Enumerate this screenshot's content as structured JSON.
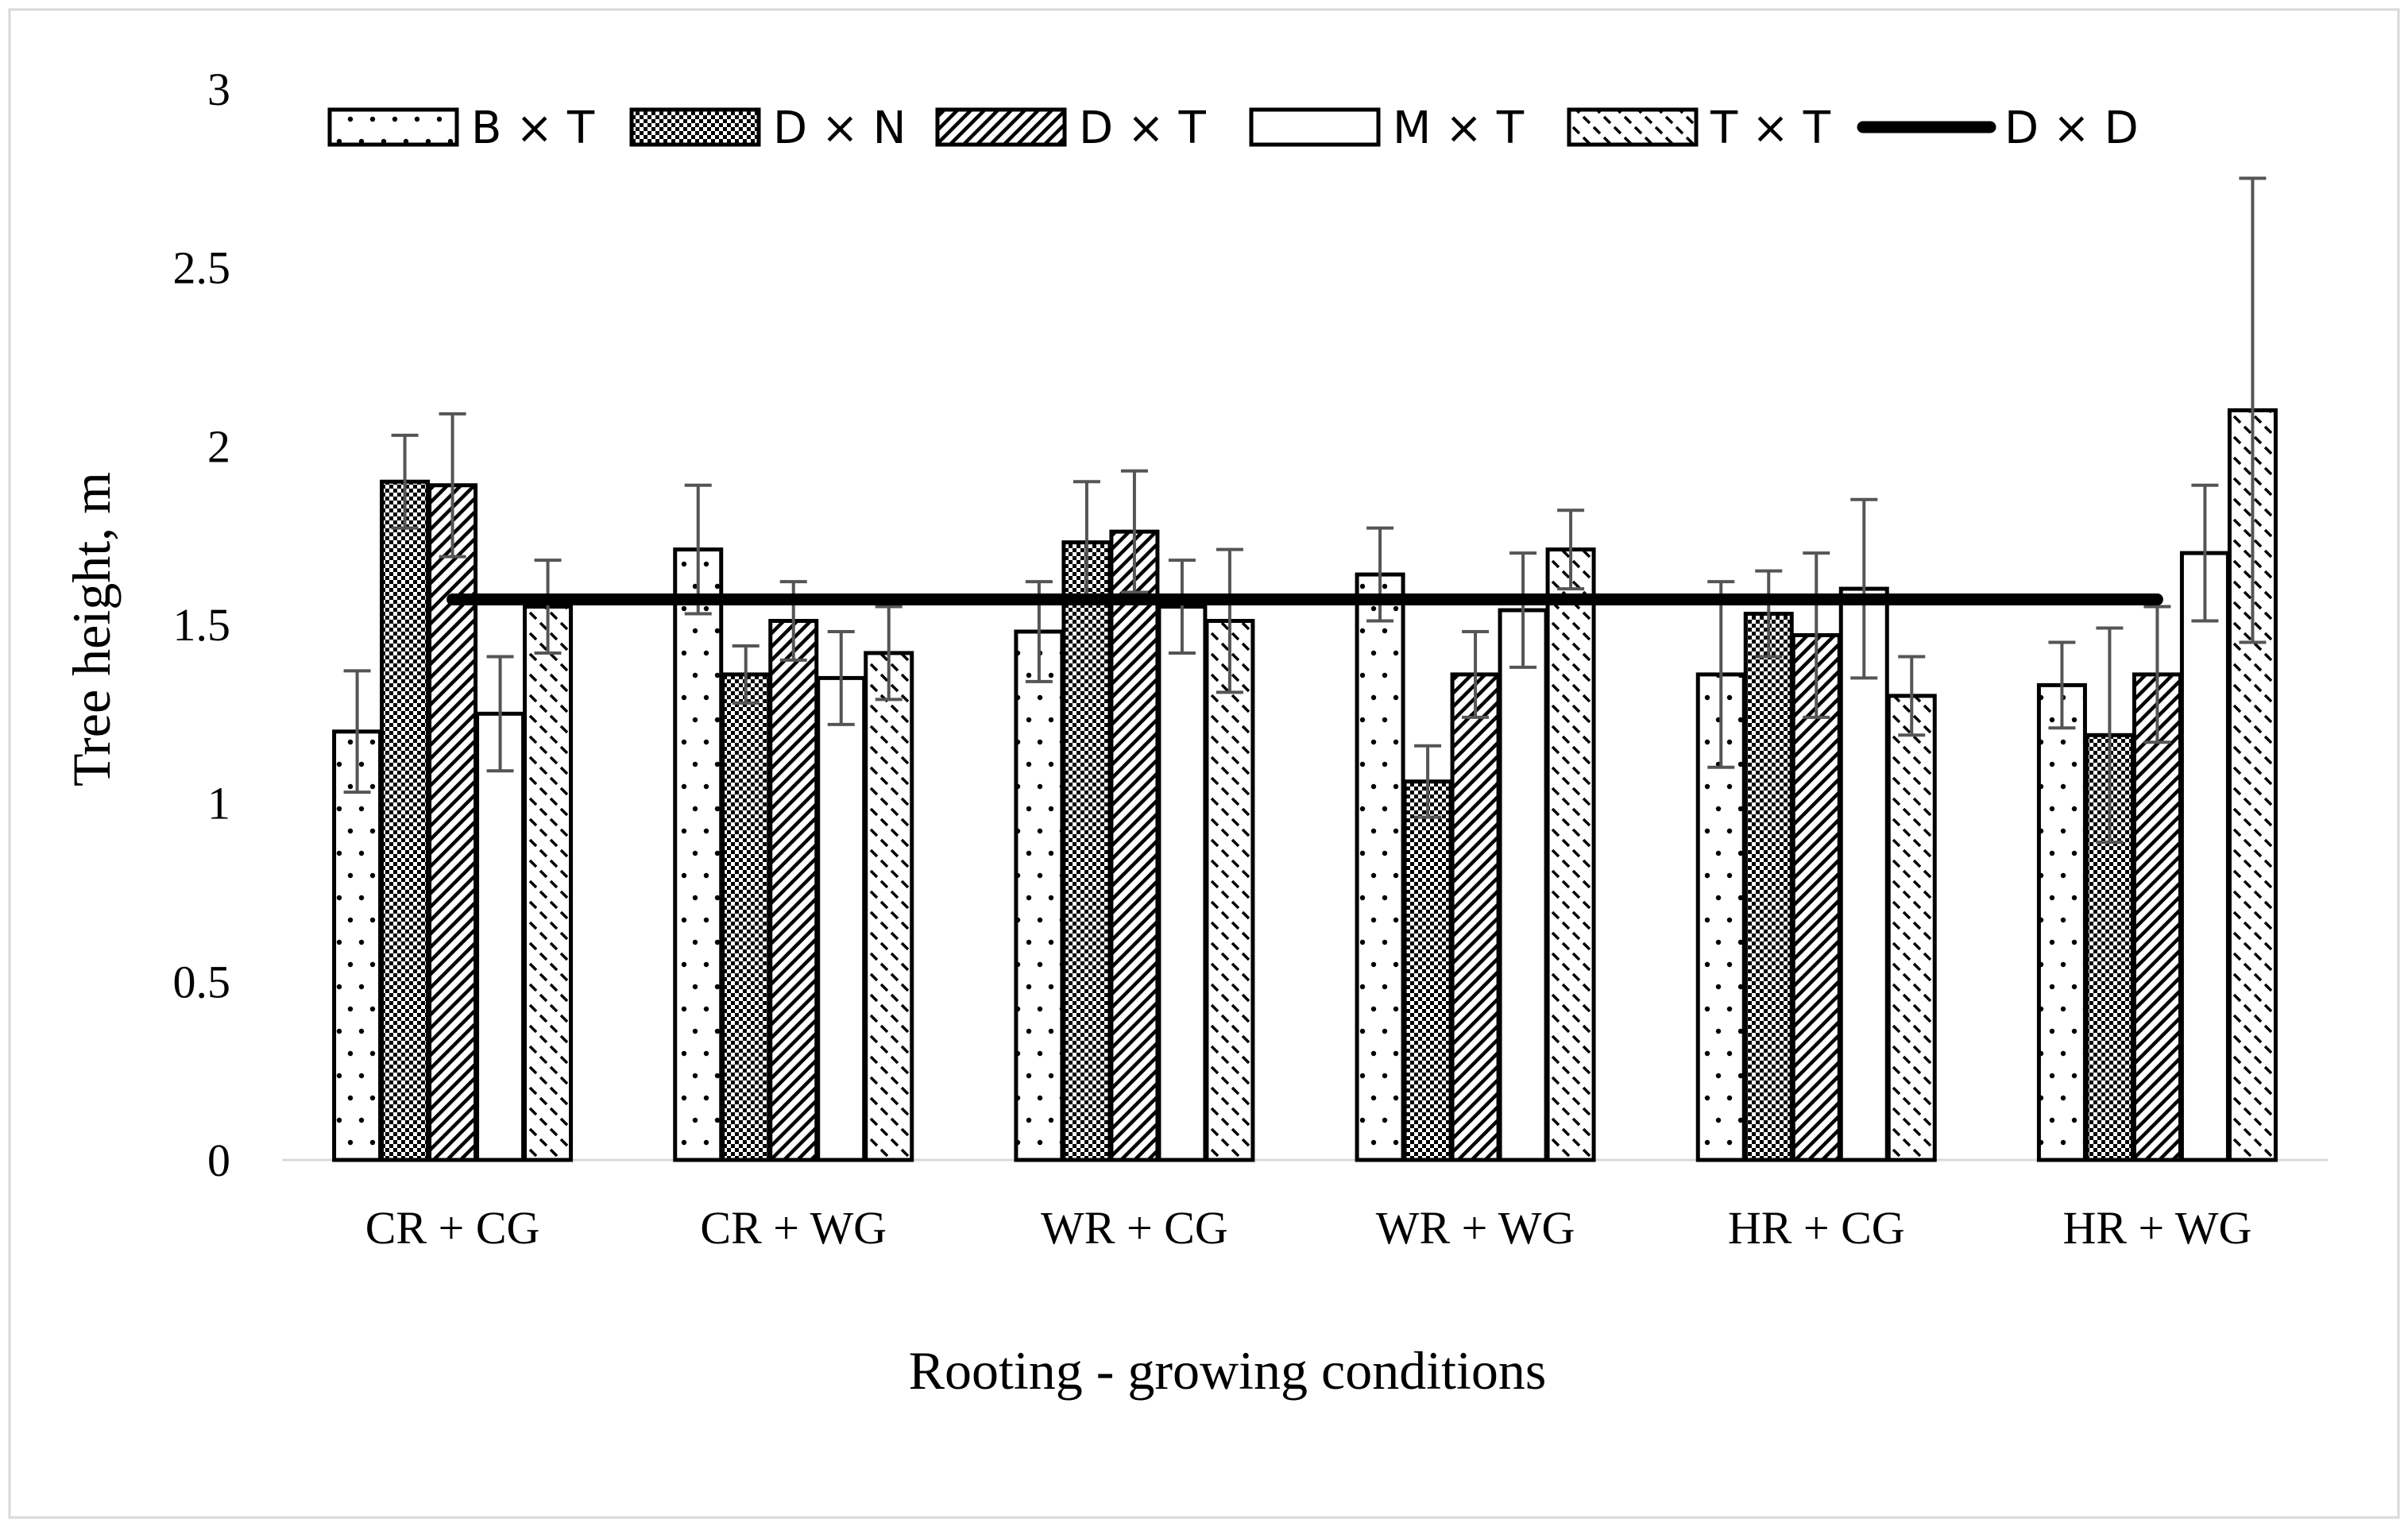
{
  "chart_data": {
    "type": "bar",
    "title": "",
    "xlabel": "Rooting - growing conditions",
    "ylabel": "Tree height, m",
    "ylim": [
      0,
      3
    ],
    "yticks": [
      "0",
      "0.5",
      "1",
      "1.5",
      "2",
      "2.5",
      "3"
    ],
    "categories": [
      "CR + CG",
      "CR + WG",
      "WR + CG",
      "WR + WG",
      "HR + CG",
      "HR + WG"
    ],
    "grid": false,
    "legend_position": "top",
    "series": [
      {
        "name": "B × T",
        "pattern": "dots",
        "values": [
          1.2,
          1.71,
          1.48,
          1.64,
          1.36,
          1.33
        ],
        "errors": [
          0.17,
          0.18,
          0.14,
          0.13,
          0.26,
          0.12
        ]
      },
      {
        "name": "D × N",
        "pattern": "checker",
        "values": [
          1.9,
          1.36,
          1.73,
          1.06,
          1.53,
          1.19
        ],
        "errors": [
          0.13,
          0.08,
          0.17,
          0.1,
          0.12,
          0.3
        ]
      },
      {
        "name": "D × T",
        "pattern": "diagonal-dense",
        "values": [
          1.89,
          1.51,
          1.76,
          1.36,
          1.47,
          1.36
        ],
        "errors": [
          0.2,
          0.11,
          0.17,
          0.12,
          0.23,
          0.19
        ]
      },
      {
        "name": "M × T",
        "pattern": "none",
        "values": [
          1.25,
          1.35,
          1.55,
          1.54,
          1.6,
          1.7
        ],
        "errors": [
          0.16,
          0.13,
          0.13,
          0.16,
          0.25,
          0.19
        ]
      },
      {
        "name": "T × T",
        "pattern": "diagonal-sparse",
        "values": [
          1.55,
          1.42,
          1.51,
          1.71,
          1.3,
          2.1
        ],
        "errors": [
          0.13,
          0.13,
          0.2,
          0.11,
          0.11,
          0.65
        ]
      }
    ],
    "line_series": {
      "name": "D × D",
      "value": 1.57
    }
  }
}
